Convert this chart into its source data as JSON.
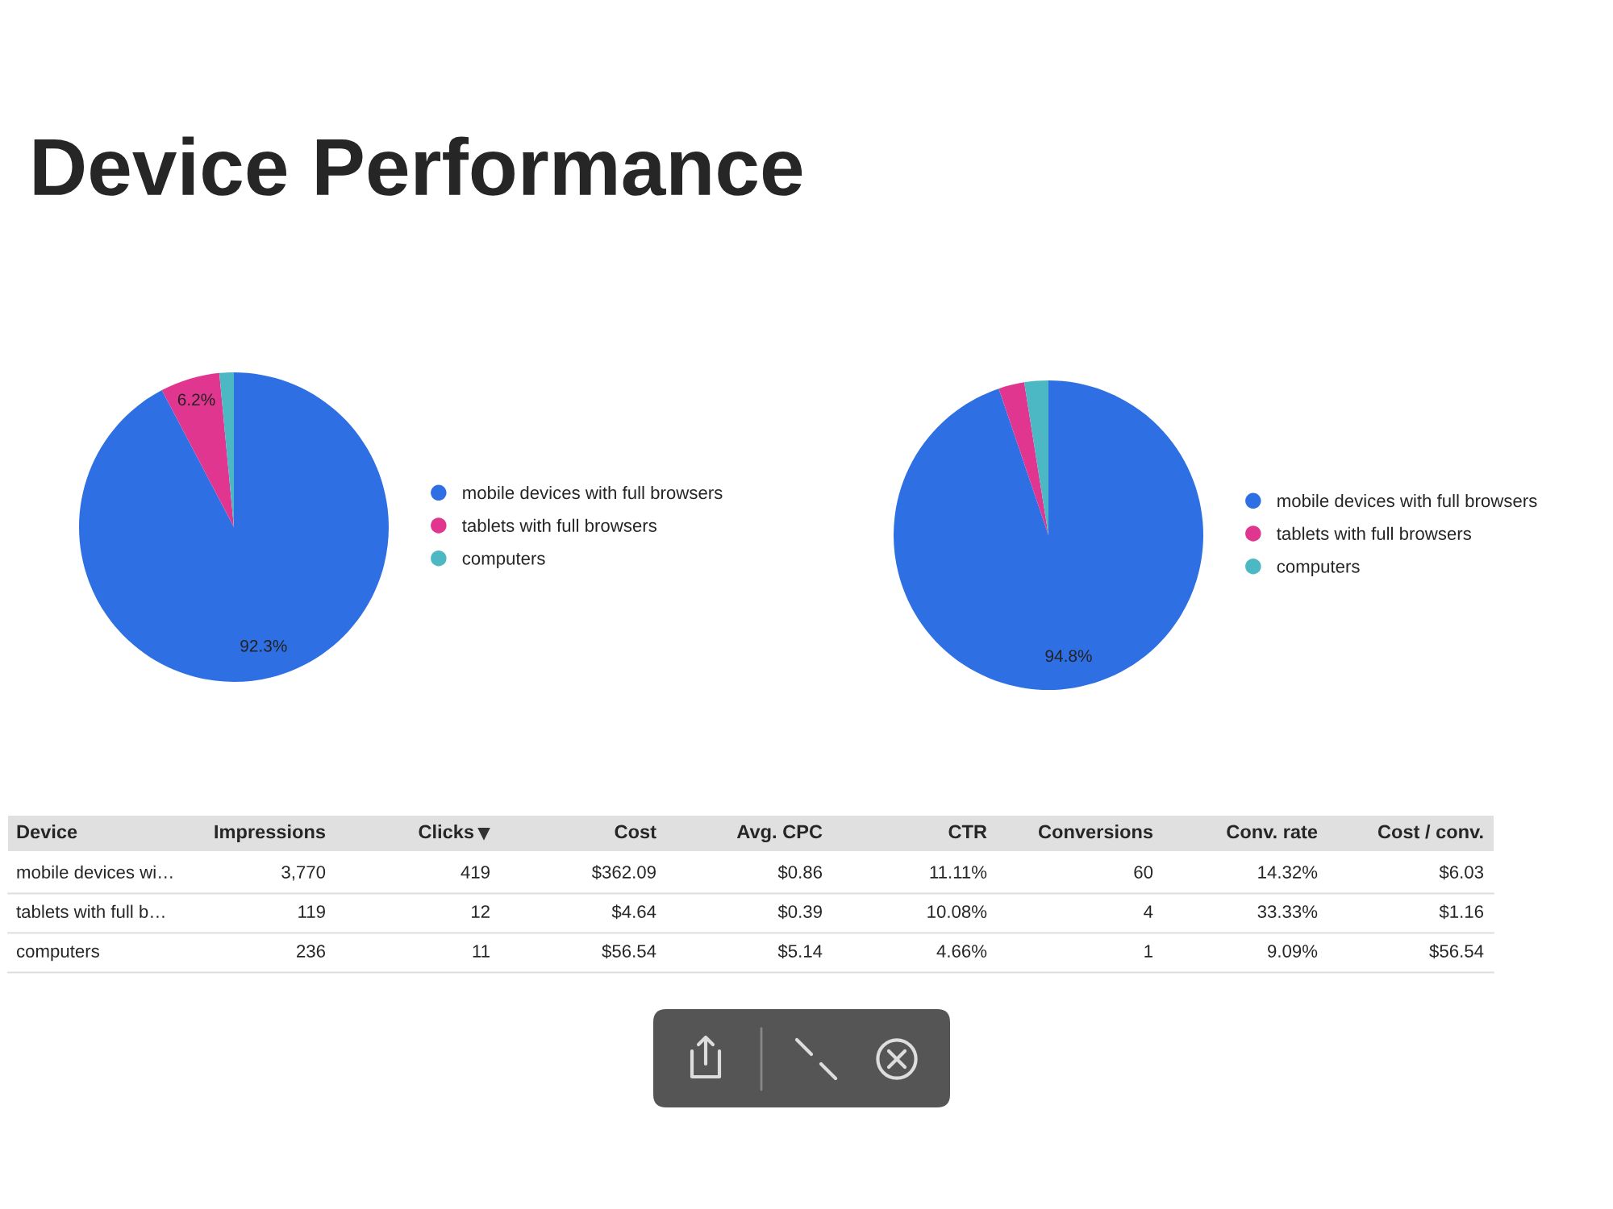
{
  "chart_data": [
    {
      "type": "pie",
      "title": "Device Performance",
      "categories": [
        "mobile devices with full browsers",
        "tablets with full browsers",
        "computers"
      ],
      "values": [
        92.3,
        6.2,
        1.5
      ],
      "colors": [
        "#2f6fe4",
        "#e0368f",
        "#4cb8c4"
      ],
      "value_labels": [
        "92.3%",
        "6.2%",
        null
      ],
      "legend": "right"
    },
    {
      "type": "pie",
      "categories": [
        "mobile devices with full browsers",
        "tablets with full browsers",
        "computers"
      ],
      "values": [
        94.8,
        2.7,
        2.5
      ],
      "colors": [
        "#2f6fe4",
        "#e0368f",
        "#4cb8c4"
      ],
      "value_labels": [
        "94.8%",
        null,
        null
      ],
      "legend": "right"
    },
    {
      "type": "other",
      "categories": [
        "Device",
        "Impressions",
        "Clicks",
        "Cost",
        "Avg. CPC",
        "CTR",
        "Conversions",
        "Conv. rate",
        "Cost / conv."
      ],
      "y_categories": [
        "mobile devices wi…",
        "tablets with full b…",
        "computers"
      ],
      "cell_labels": [
        [
          "3,770",
          "419",
          "$362.09",
          "$0.86",
          "11.11%",
          "60",
          "14.32%",
          "$6.03"
        ],
        [
          "119",
          "12",
          "$4.64",
          "$0.39",
          "10.08%",
          "4",
          "33.33%",
          "$1.16"
        ],
        [
          "236",
          "11",
          "$56.54",
          "$5.14",
          "4.66%",
          "1",
          "9.09%",
          "$56.54"
        ]
      ]
    }
  ]
}
